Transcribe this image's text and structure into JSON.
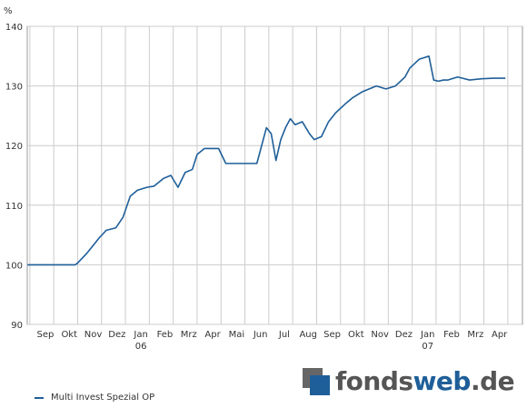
{
  "chart_data": {
    "type": "line",
    "ylabel": "%",
    "ylim": [
      90,
      140
    ],
    "yticks": [
      90,
      100,
      110,
      120,
      130,
      140
    ],
    "month_labels": [
      "Sep",
      "Okt",
      "Nov",
      "Dez",
      "Jan",
      "Feb",
      "Mrz",
      "Apr",
      "Mai",
      "Jun",
      "Jul",
      "Aug",
      "Sep",
      "Okt",
      "Nov",
      "Dez",
      "Jan",
      "Feb",
      "Mrz",
      "Apr"
    ],
    "year_labels": [
      {
        "month": "Jan",
        "index": 4,
        "label": "06"
      },
      {
        "month": "Jan",
        "index": 16,
        "label": "07"
      }
    ],
    "x_range_months": [
      0,
      20
    ],
    "series": [
      {
        "name": "Multi Invest Spezial OP",
        "color": "#1f5f99",
        "x": [
          0,
          1,
          2,
          2.1,
          2.5,
          3,
          3.3,
          3.7,
          4,
          4.3,
          4.6,
          5,
          5.3,
          5.7,
          6,
          6.3,
          6.6,
          6.9,
          7.1,
          7.4,
          7.7,
          8,
          8.3,
          8.6,
          9,
          9.4,
          9.6,
          10,
          10.2,
          10.4,
          10.6,
          10.8,
          11,
          11.2,
          11.5,
          11.8,
          12,
          12.3,
          12.6,
          12.9,
          13.3,
          13.6,
          14,
          14.3,
          14.6,
          15,
          15.4,
          15.8,
          16,
          16.4,
          16.8,
          17,
          17.2,
          17.4,
          17.6,
          18,
          18.5,
          19,
          19.5,
          20
        ],
        "values": [
          100,
          100,
          100,
          100.3,
          102,
          104.5,
          105.8,
          106.2,
          108,
          111.5,
          112.5,
          113,
          113.2,
          114.5,
          115,
          113,
          115.5,
          116,
          118.5,
          119.5,
          119.5,
          119.5,
          117,
          117,
          117,
          117,
          117,
          123,
          122,
          117.5,
          121,
          123,
          124.5,
          123.5,
          124,
          122,
          121,
          121.5,
          124,
          125.5,
          127,
          128,
          129,
          129.5,
          130,
          129.5,
          130,
          131.5,
          133,
          134.5,
          135,
          131,
          130.8,
          131,
          131,
          131.5,
          131,
          131.2,
          131.3,
          131.3
        ]
      }
    ],
    "grid": true,
    "legend": "bottom-left"
  },
  "legend": {
    "series_label": "Multi Invest Spezial OP"
  },
  "logo": {
    "part1": "fonds",
    "part2": "web",
    "part3": ".de"
  }
}
